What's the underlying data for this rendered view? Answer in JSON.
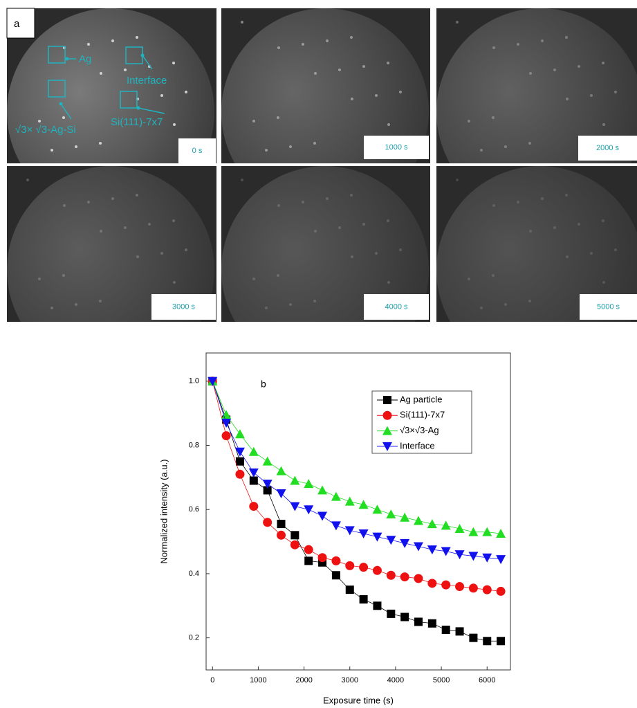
{
  "panel_a": {
    "label": "a",
    "frames": [
      "0 s",
      "1000 s",
      "2000 s",
      "3000 s",
      "4000 s",
      "5000 s"
    ],
    "annotations": [
      "Ag",
      "Interface",
      "√3× √3-Ag-Si",
      "Si(111)-7x7"
    ]
  },
  "chart_data": {
    "type": "line",
    "panel_label": "b",
    "x_label": "Exposure time (s)",
    "y_label": "Normalized intensity (a.u.)",
    "x": [
      0,
      300,
      600,
      900,
      1200,
      1500,
      1800,
      2100,
      2400,
      2700,
      3000,
      3300,
      3600,
      3900,
      4200,
      4500,
      4800,
      5100,
      5400,
      5700,
      6000,
      6300
    ],
    "series": [
      {
        "name": "Ag particle",
        "color": "#000000",
        "marker": "square",
        "values": [
          1.0,
          0.88,
          0.75,
          0.69,
          0.66,
          0.555,
          0.52,
          0.44,
          0.435,
          0.395,
          0.35,
          0.32,
          0.3,
          0.275,
          0.265,
          0.25,
          0.245,
          0.225,
          0.22,
          0.2,
          0.19,
          0.19
        ]
      },
      {
        "name": "Si(111)-7x7",
        "color": "#ee1111",
        "marker": "circle",
        "values": [
          1.0,
          0.83,
          0.71,
          0.61,
          0.56,
          0.52,
          0.49,
          0.475,
          0.45,
          0.44,
          0.425,
          0.42,
          0.41,
          0.395,
          0.39,
          0.385,
          0.37,
          0.365,
          0.36,
          0.355,
          0.35,
          0.345
        ]
      },
      {
        "name": "√3×√3-Ag",
        "color": "#22dd22",
        "marker": "triangle-up",
        "values": [
          1.0,
          0.895,
          0.835,
          0.78,
          0.75,
          0.72,
          0.69,
          0.68,
          0.66,
          0.64,
          0.625,
          0.615,
          0.6,
          0.585,
          0.575,
          0.565,
          0.555,
          0.55,
          0.54,
          0.53,
          0.53,
          0.525
        ]
      },
      {
        "name": "Interface",
        "color": "#1111ee",
        "marker": "triangle-down",
        "values": [
          1.0,
          0.87,
          0.78,
          0.715,
          0.68,
          0.65,
          0.61,
          0.6,
          0.58,
          0.55,
          0.535,
          0.525,
          0.515,
          0.505,
          0.495,
          0.485,
          0.475,
          0.47,
          0.46,
          0.455,
          0.45,
          0.445
        ]
      }
    ],
    "xlim": [
      -140,
      6510
    ],
    "ylim": [
      0.1,
      1.088
    ],
    "xticks": [
      0,
      1000,
      2000,
      3000,
      4000,
      5000,
      6000
    ],
    "yticks": [
      0.2,
      0.4,
      0.6,
      0.8,
      {
        "value": 1,
        "label": "1.0"
      }
    ],
    "legend": "upper-right"
  }
}
